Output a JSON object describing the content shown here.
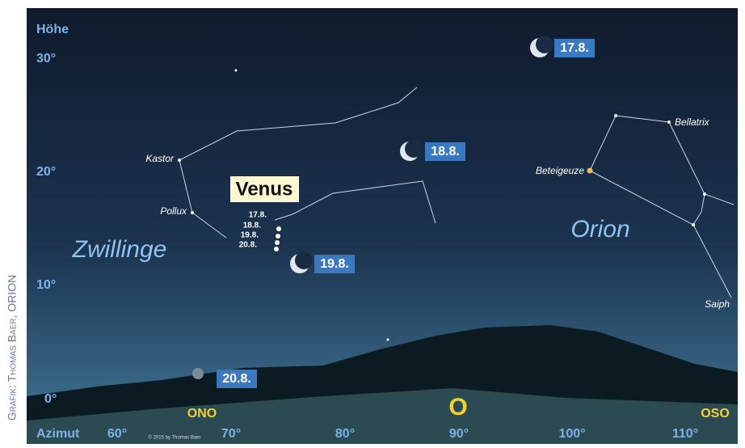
{
  "credit": "Grafik: Thomas Baer, ORION",
  "axes": {
    "altitude_title": "Höhe",
    "altitude_ticks": [
      "30°",
      "20°",
      "10°",
      "0°"
    ],
    "azimuth_title": "Azimut",
    "azimuth_ticks": [
      "60°",
      "70°",
      "80°",
      "90°",
      "100°",
      "110°"
    ],
    "directions": [
      "ONO",
      "O",
      "OSO"
    ]
  },
  "stars": [
    "Kastor",
    "Pollux",
    "Bellatrix",
    "Beteigeuze",
    "Saiph"
  ],
  "constellations": [
    "Zwillinge",
    "Orion"
  ],
  "venus": {
    "label": "Venus",
    "dates": [
      "17.8.",
      "18.8.",
      "19.8.",
      "20.8."
    ]
  },
  "moon_dates": [
    "17.8.",
    "18.8.",
    "19.8.",
    "20.8."
  ],
  "copyright": "© 2015 by Thomas Baer"
}
